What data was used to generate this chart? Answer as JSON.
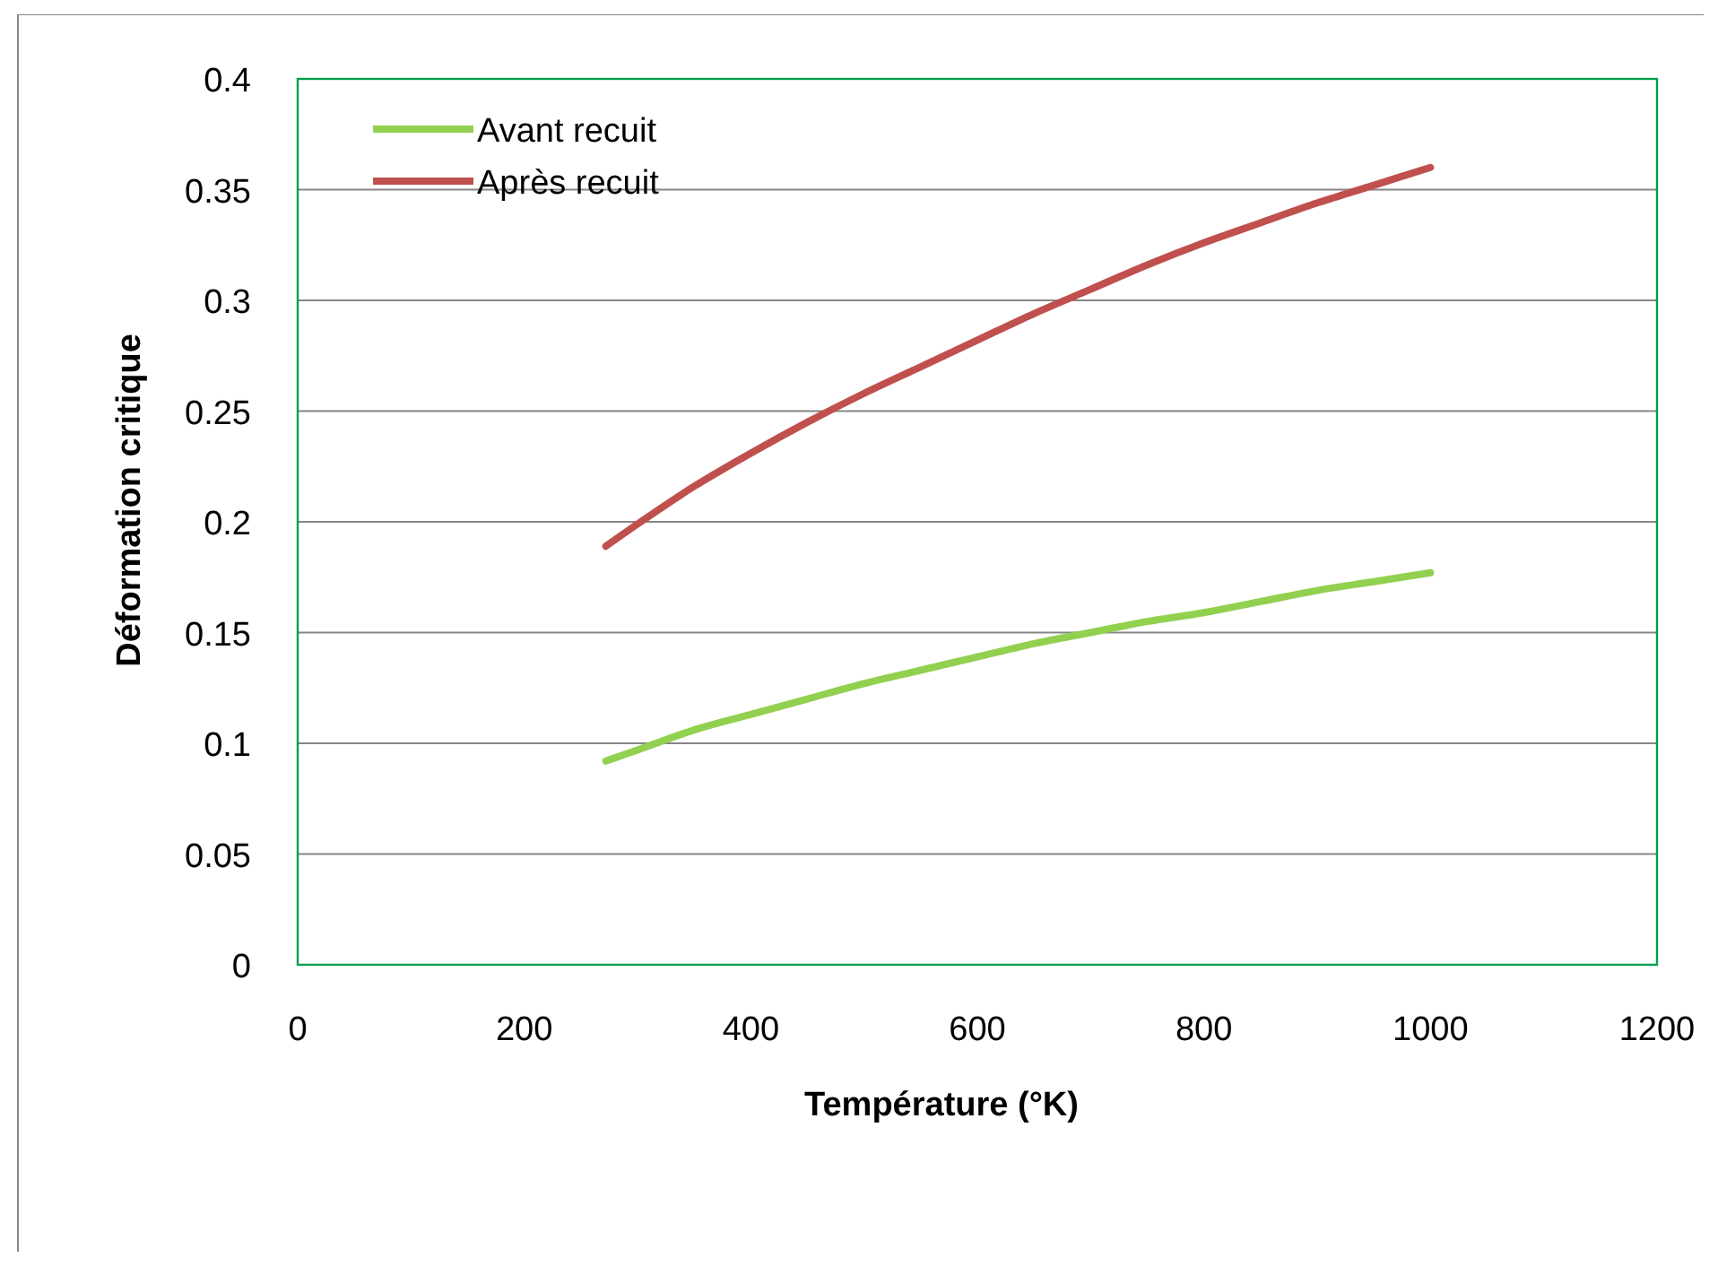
{
  "chart_data": {
    "type": "line",
    "xlabel": "Température (°K)",
    "ylabel": "Déformation critique",
    "xlim": [
      0,
      1200
    ],
    "xticks": [
      0,
      200,
      400,
      600,
      800,
      1000,
      1200
    ],
    "ylim": [
      0,
      0.4
    ],
    "yticks": [
      0,
      0.05,
      0.1,
      0.15,
      0.2,
      0.25,
      0.3,
      0.35,
      0.4
    ],
    "grid": "y",
    "legend": "top left",
    "marker": "none",
    "line_style": "solid",
    "x": [
      272,
      300,
      350,
      400,
      450,
      500,
      550,
      600,
      650,
      700,
      750,
      800,
      850,
      900,
      950,
      1000
    ],
    "series": [
      {
        "name": "Avant recuit",
        "color": "#92d050",
        "values": [
          0.092,
          0.097,
          0.106,
          0.113,
          0.12,
          0.127,
          0.133,
          0.139,
          0.145,
          0.15,
          0.155,
          0.159,
          0.164,
          0.169,
          0.173,
          0.177
        ]
      },
      {
        "name": "Après recuit",
        "color": "#c0504d",
        "values": [
          0.189,
          0.199,
          0.216,
          0.231,
          0.245,
          0.258,
          0.27,
          0.282,
          0.294,
          0.305,
          0.316,
          0.326,
          0.335,
          0.344,
          0.352,
          0.36
        ]
      }
    ]
  }
}
